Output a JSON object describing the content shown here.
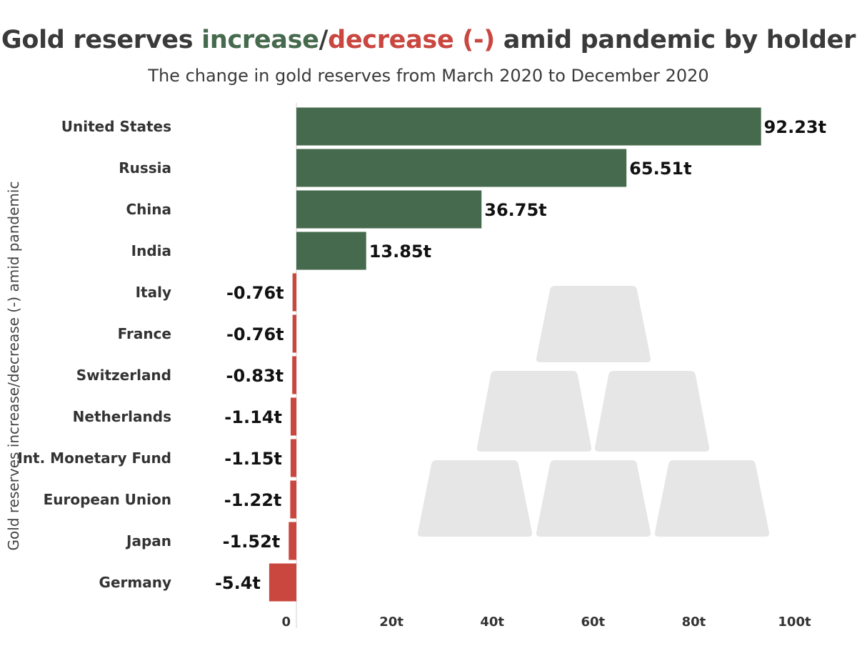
{
  "chart_data": {
    "type": "bar",
    "orientation": "horizontal",
    "title_parts": [
      {
        "text": "Gold reserves ",
        "color": "#3a3a3a"
      },
      {
        "text": "increase",
        "color": "#466a4d"
      },
      {
        "text": "/",
        "color": "#3a3a3a"
      },
      {
        "text": "decrease (-)",
        "color": "#c9473f"
      },
      {
        "text": " amid pandemic by holder",
        "color": "#3a3a3a"
      }
    ],
    "subtitle": "The change in gold reserves from March 2020 to December 2020",
    "ylabel": "Gold reserves increase/decrease (-) amid pandemic",
    "categories": [
      "United States",
      "Russia",
      "China",
      "India",
      "Italy",
      "France",
      "Switzerland",
      "Netherlands",
      "Int. Monetary Fund",
      "European Union",
      "Japan",
      "Germany"
    ],
    "values": [
      92.23,
      65.51,
      36.75,
      13.85,
      -0.76,
      -0.76,
      -0.83,
      -1.14,
      -1.15,
      -1.22,
      -1.52,
      -5.4
    ],
    "value_labels": [
      "92.23t",
      "65.51t",
      "36.75t",
      "13.85t",
      "-0.76t",
      "-0.76t",
      "-0.83t",
      "-1.14t",
      "-1.15t",
      "-1.22t",
      "-1.52t",
      "-5.4t"
    ],
    "xticks": [
      0,
      20,
      40,
      60,
      80,
      100
    ],
    "xtick_labels": [
      "0",
      "20t",
      "40t",
      "60t",
      "80t",
      "100t"
    ],
    "xlim": [
      -5.5,
      100
    ],
    "colors": {
      "positive": "#466a4d",
      "negative": "#c9473f",
      "background_icon": "#e6e6e6"
    },
    "background_icon": "gold-bars-icon"
  }
}
